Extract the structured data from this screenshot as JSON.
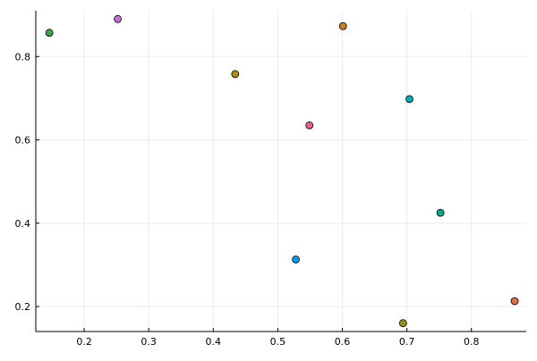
{
  "chart_data": {
    "type": "scatter",
    "title": "",
    "xlabel": "",
    "ylabel": "",
    "grid": true,
    "legend": "none",
    "xlim": [
      0.125,
      0.885
    ],
    "ylim": [
      0.14,
      0.91
    ],
    "x_ticks": [
      0.2,
      0.3,
      0.4,
      0.5,
      0.6,
      0.7,
      0.8
    ],
    "x_tick_labels": [
      "0.2",
      "0.3",
      "0.4",
      "0.5",
      "0.6",
      "0.7",
      "0.8"
    ],
    "y_ticks": [
      0.2,
      0.4,
      0.6,
      0.8
    ],
    "y_tick_labels": [
      "0.2",
      "0.4",
      "0.6",
      "0.8"
    ],
    "series": [
      {
        "x": [
          0.528
        ],
        "y": [
          0.313
        ],
        "color": "#009AFA"
      },
      {
        "x": [
          0.867
        ],
        "y": [
          0.213
        ],
        "color": "#E36F47"
      },
      {
        "x": [
          0.146
        ],
        "y": [
          0.857
        ],
        "color": "#3EA44E"
      },
      {
        "x": [
          0.252
        ],
        "y": [
          0.89
        ],
        "color": "#C371D2"
      },
      {
        "x": [
          0.434
        ],
        "y": [
          0.758
        ],
        "color": "#AC8D18"
      },
      {
        "x": [
          0.704
        ],
        "y": [
          0.698
        ],
        "color": "#00A9AD"
      },
      {
        "x": [
          0.549
        ],
        "y": [
          0.635
        ],
        "color": "#ED5E93"
      },
      {
        "x": [
          0.694
        ],
        "y": [
          0.16
        ],
        "color": "#8E971E"
      },
      {
        "x": [
          0.752
        ],
        "y": [
          0.425
        ],
        "color": "#00A98D"
      },
      {
        "x": [
          0.601
        ],
        "y": [
          0.873
        ],
        "color": "#C68225"
      }
    ]
  }
}
